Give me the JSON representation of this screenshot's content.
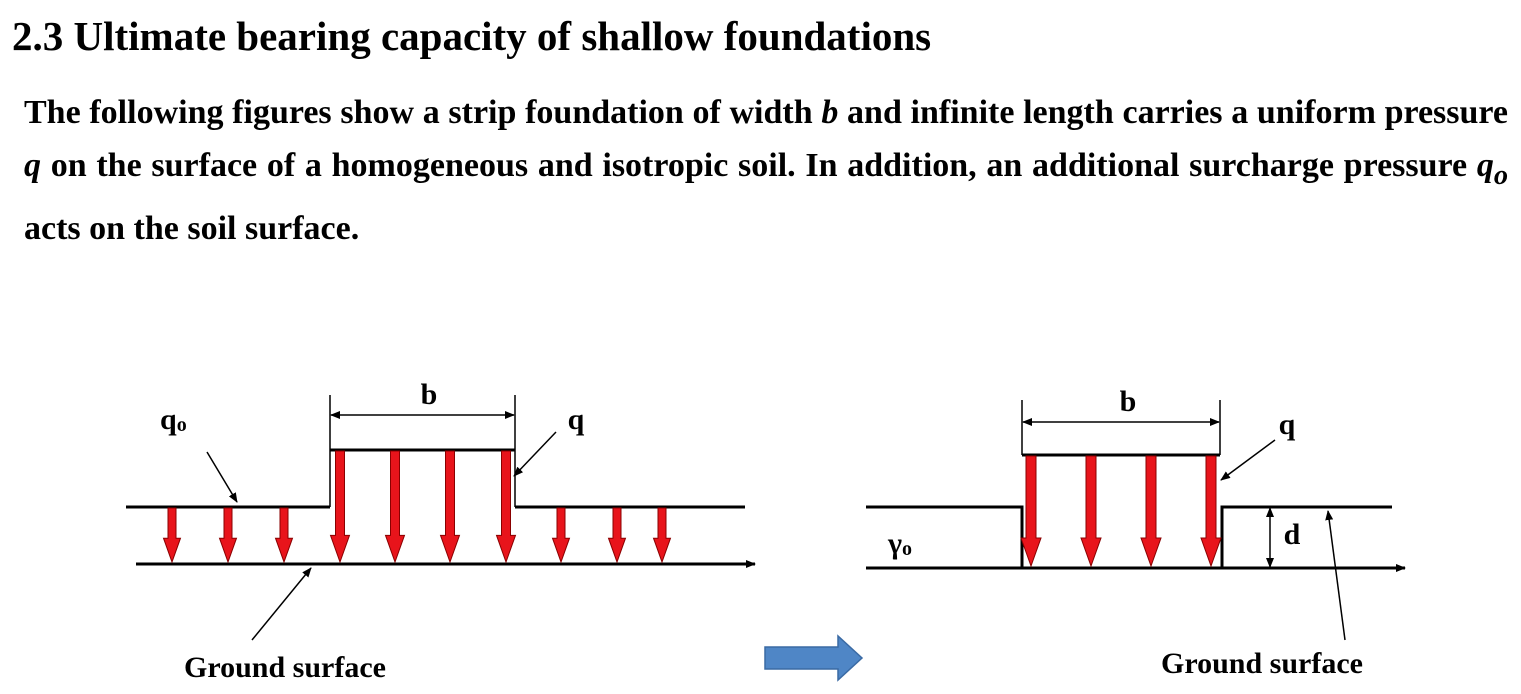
{
  "header": {
    "title": "2.3 Ultimate bearing capacity of shallow foundations"
  },
  "body": {
    "runs": [
      "The following figures show a strip foundation of width ",
      "b",
      " and infinite length carries a uniform pressure ",
      "q",
      " on the surface of a homogeneous and isotropic soil. In addition, an additional surcharge pressure ",
      "q",
      "o",
      " acts on the soil surface."
    ]
  },
  "figure_left": {
    "width_label": "b",
    "load_label": "q",
    "surcharge_label": "q",
    "surcharge_subscript": "o",
    "ground_label": "Ground surface"
  },
  "figure_right": {
    "width_label": "b",
    "load_label": "q",
    "unit_weight_label": "γ",
    "unit_weight_subscript": "o",
    "depth_label": "d",
    "ground_label": "Ground surface"
  }
}
